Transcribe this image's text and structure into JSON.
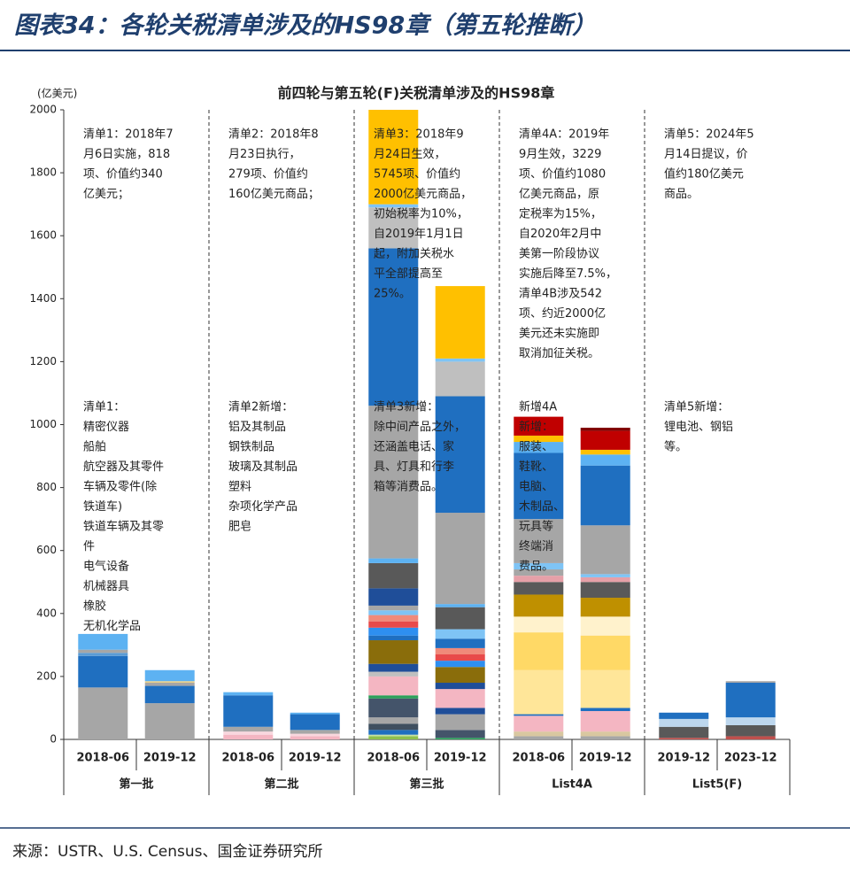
{
  "page_title": "图表34：各轮关税清单涉及的HS98章（第五轮推断）",
  "source": "来源：USTR、U.S. Census、国金证券研究所",
  "chart_data": {
    "type": "stacked_bar",
    "title": "前四轮与第五轮(F)关税清单涉及的HS98章",
    "y_unit": "(亿美元)",
    "ylim": [
      0,
      2000
    ],
    "yticks": [
      0,
      200,
      400,
      600,
      800,
      1000,
      1200,
      1400,
      1600,
      1800,
      2000
    ],
    "groups": [
      {
        "label": "第一批",
        "top_note": [
          "清单1：2018年7",
          "月6日实施，818",
          "项、价值约340",
          "亿美元；"
        ],
        "mid_note": [
          "清单1：",
          "精密仪器",
          "船舶",
          "航空器及其零件",
          "车辆及零件(除",
          "铁道车)",
          "铁道车辆及其零",
          "件",
          "电气设备",
          "机械器具",
          "橡胶",
          "无机化学品"
        ],
        "bars": [
          {
            "category": "2018-06",
            "colors": [
              "#a6a6a6",
              "#1f6fc0",
              "#5b9bd5",
              "#a6a6a6",
              "#5db2f2"
            ],
            "values": [
              165,
              100,
              10,
              10,
              50
            ]
          },
          {
            "category": "2019-12",
            "colors": [
              "#a6a6a6",
              "#1f6fc0",
              "#a6a6a6",
              "#e8d08a",
              "#5db2f2"
            ],
            "values": [
              115,
              55,
              10,
              5,
              35
            ]
          }
        ]
      },
      {
        "label": "第二批",
        "top_note": [
          "清单2：2018年8",
          "月23日执行，",
          "279项、价值约",
          "160亿美元商品；"
        ],
        "mid_note": [
          "清单2新增：",
          "铝及其制品",
          "钢铁制品",
          "玻璃及其制品",
          "塑料",
          "杂项化学产品",
          "肥皂"
        ],
        "bars": [
          {
            "category": "2018-06",
            "colors": [
              "#f4b6c2",
              "#f9d7de",
              "#a6a6a6",
              "#1f6fc0",
              "#5db2f2"
            ],
            "values": [
              15,
              10,
              15,
              100,
              10
            ]
          },
          {
            "category": "2019-12",
            "colors": [
              "#f4b6c2",
              "#f9d7de",
              "#a6a6a6",
              "#1f6fc0",
              "#5db2f2"
            ],
            "values": [
              10,
              8,
              12,
              50,
              5
            ]
          }
        ]
      },
      {
        "label": "第三批",
        "top_note": [
          "清单3：2018年9",
          "月24日生效，",
          "5745项、价值约",
          "2000亿美元商品，",
          "初始税率为10%，",
          "自2019年1月1日",
          "起，附加关税水",
          "平全部提高至",
          "25%。"
        ],
        "mid_note": [
          "清单3新增：",
          "除中间产品之外，",
          "还涵盖电话、家",
          "具、灯具和行李",
          "箱等消费品。"
        ],
        "bars": [
          {
            "category": "2018-06",
            "colors": [
              "#8fc04f",
              "#c5e0a5",
              "#1f6fc0",
              "#3f4f5f",
              "#a6a6a6",
              "#44546a",
              "#2ca05a",
              "#f4b6c2",
              "#bfbfbf",
              "#1f4e99",
              "#8a6d0b",
              "#1f6fc0",
              "#2e8ff0",
              "#e84a4a",
              "#f08a7a",
              "#7fc4f5",
              "#a6a6a6",
              "#1f4e99",
              "#595959",
              "#5db2f2",
              "#a6a6a6",
              "#1f6fc0",
              "#bfbfbf",
              "#7fc4f5",
              "#ffc000"
            ],
            "values": [
              10,
              5,
              15,
              20,
              20,
              60,
              10,
              60,
              15,
              25,
              75,
              15,
              25,
              20,
              20,
              15,
              15,
              55,
              80,
              15,
              485,
              500,
              130,
              10,
              300
            ]
          },
          {
            "category": "2019-12",
            "colors": [
              "#2ca05a",
              "#44546a",
              "#a6a6a6",
              "#1f4e99",
              "#f4b6c2",
              "#1f4e99",
              "#8a6d0b",
              "#2e8ff0",
              "#e84a4a",
              "#f08a7a",
              "#1f6fc0",
              "#7fc4f5",
              "#595959",
              "#5db2f2",
              "#a6a6a6",
              "#1f6fc0",
              "#bfbfbf",
              "#7fc4f5",
              "#ffc000"
            ],
            "values": [
              5,
              25,
              50,
              20,
              60,
              20,
              50,
              20,
              20,
              20,
              30,
              30,
              70,
              10,
              290,
              370,
              110,
              10,
              230
            ]
          }
        ]
      },
      {
        "label": "List4A",
        "top_note": [
          "清单4A：2019年",
          "9月生效，3229",
          "项、价值约1080",
          "亿美元商品，原",
          "定税率为15%，",
          "自2020年2月中",
          "美第一阶段协议",
          "实施后降至7.5%，",
          "清单4B涉及542",
          "项、约近2000亿",
          "美元还未实施即",
          "取消加征关税。"
        ],
        "mid_note": [
          "新增4A",
          "新增：",
          "服装、",
          "鞋靴、",
          "电脑、",
          "木制品、",
          "玩具等",
          "终端消",
          "费品。"
        ],
        "bars": [
          {
            "category": "2018-06",
            "colors": [
              "#a6a6a6",
              "#d9c7a0",
              "#f4b6c2",
              "#1f6fc0",
              "#ffe699",
              "#ffd966",
              "#fff2cc",
              "#bf9000",
              "#595959",
              "#e6a0a8",
              "#a6a6a6",
              "#7fc4f5",
              "#a6a6a6",
              "#1f6fc0",
              "#5db2f2",
              "#ffc000",
              "#c00000"
            ],
            "values": [
              10,
              15,
              50,
              5,
              140,
              120,
              50,
              70,
              40,
              20,
              20,
              20,
              140,
              210,
              35,
              20,
              60
            ]
          },
          {
            "category": "2019-12",
            "colors": [
              "#a6a6a6",
              "#d9c7a0",
              "#f4b6c2",
              "#1f6fc0",
              "#ffe699",
              "#ffd966",
              "#fff2cc",
              "#bf9000",
              "#595959",
              "#e6a0a8",
              "#7fc4f5",
              "#a6a6a6",
              "#1f6fc0",
              "#5db2f2",
              "#ffc000",
              "#c00000",
              "#7f0000"
            ],
            "values": [
              10,
              15,
              65,
              10,
              120,
              110,
              60,
              60,
              50,
              15,
              10,
              155,
              190,
              35,
              15,
              60,
              10
            ]
          }
        ]
      },
      {
        "label": "List5(F)",
        "top_note": [
          "清单5：2024年5",
          "月14日提议，价",
          "值约180亿美元",
          "商品。"
        ],
        "mid_note": [
          "清单5新增：",
          "锂电池、钢铝",
          "等。"
        ],
        "bars": [
          {
            "category": "2019-12",
            "colors": [
              "#c0504d",
              "#595959",
              "#bdd7ee",
              "#1f6fc0"
            ],
            "values": [
              5,
              35,
              25,
              20
            ]
          },
          {
            "category": "2023-12",
            "colors": [
              "#c0504d",
              "#595959",
              "#bdd7ee",
              "#1f6fc0",
              "#a6a6a6"
            ],
            "values": [
              10,
              35,
              25,
              110,
              5
            ]
          }
        ]
      }
    ]
  }
}
